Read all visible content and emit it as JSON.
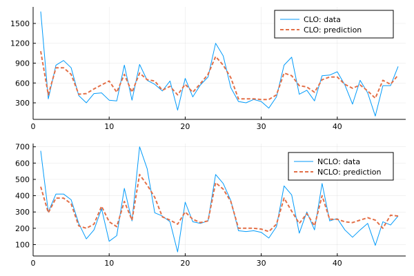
{
  "chart_data": [
    {
      "type": "line",
      "title": "",
      "xlabel": "",
      "ylabel": "",
      "xlim": [
        0,
        49
      ],
      "ylim": [
        50,
        1750
      ],
      "xticks": [
        0,
        10,
        20,
        30,
        40
      ],
      "yticks": [
        300,
        600,
        900,
        1200,
        1500
      ],
      "grid": true,
      "legend_position": "top-right",
      "x": [
        1,
        2,
        3,
        4,
        5,
        6,
        7,
        8,
        9,
        10,
        11,
        12,
        13,
        14,
        15,
        16,
        17,
        18,
        19,
        20,
        21,
        22,
        23,
        24,
        25,
        26,
        27,
        28,
        29,
        30,
        31,
        32,
        33,
        34,
        35,
        36,
        37,
        38,
        39,
        40,
        41,
        42,
        43,
        44,
        45,
        46,
        47,
        48
      ],
      "series": [
        {
          "name": "CLO: data",
          "style": "solid",
          "color": "#009AFA",
          "values": [
            1680,
            360,
            870,
            940,
            830,
            410,
            300,
            440,
            450,
            340,
            330,
            870,
            340,
            880,
            640,
            580,
            480,
            630,
            190,
            670,
            390,
            570,
            690,
            1200,
            1010,
            530,
            320,
            300,
            350,
            320,
            220,
            390,
            870,
            990,
            430,
            490,
            330,
            710,
            720,
            770,
            570,
            280,
            640,
            450,
            100,
            560,
            560,
            850
          ]
        },
        {
          "name": "CLO: prediction",
          "style": "dashed",
          "color": "#E36F47",
          "values": [
            1080,
            420,
            830,
            830,
            730,
            430,
            440,
            510,
            570,
            630,
            460,
            730,
            460,
            750,
            650,
            630,
            490,
            550,
            420,
            580,
            460,
            590,
            730,
            1000,
            870,
            680,
            360,
            360,
            360,
            350,
            350,
            420,
            750,
            710,
            560,
            540,
            460,
            650,
            690,
            690,
            580,
            520,
            570,
            480,
            370,
            640,
            580,
            720
          ]
        }
      ]
    },
    {
      "type": "line",
      "title": "",
      "xlabel": "",
      "ylabel": "",
      "xlim": [
        0,
        49
      ],
      "ylim": [
        30,
        720
      ],
      "xticks": [
        0,
        10,
        20,
        30,
        40
      ],
      "yticks": [
        100,
        200,
        300,
        400,
        500,
        600,
        700
      ],
      "grid": true,
      "legend_position": "top-right",
      "x": [
        1,
        2,
        3,
        4,
        5,
        6,
        7,
        8,
        9,
        10,
        11,
        12,
        13,
        14,
        15,
        16,
        17,
        18,
        19,
        20,
        21,
        22,
        23,
        24,
        25,
        26,
        27,
        28,
        29,
        30,
        31,
        32,
        33,
        34,
        35,
        36,
        37,
        38,
        39,
        40,
        41,
        42,
        43,
        44,
        45,
        46,
        47,
        48
      ],
      "series": [
        {
          "name": "NCLO: data",
          "style": "solid",
          "color": "#009AFA",
          "values": [
            675,
            300,
            410,
            410,
            375,
            230,
            135,
            190,
            320,
            120,
            155,
            445,
            245,
            700,
            565,
            295,
            275,
            240,
            55,
            360,
            240,
            230,
            245,
            530,
            475,
            370,
            185,
            180,
            185,
            175,
            140,
            210,
            460,
            405,
            170,
            300,
            190,
            475,
            245,
            260,
            190,
            145,
            190,
            230,
            95,
            240,
            220,
            275
          ]
        },
        {
          "name": "NCLO: prediction",
          "style": "dashed",
          "color": "#E36F47",
          "values": [
            455,
            295,
            385,
            385,
            350,
            215,
            200,
            225,
            335,
            240,
            210,
            365,
            250,
            530,
            465,
            390,
            270,
            250,
            225,
            300,
            255,
            235,
            245,
            480,
            440,
            365,
            200,
            200,
            200,
            195,
            180,
            225,
            385,
            305,
            230,
            290,
            215,
            400,
            255,
            255,
            240,
            235,
            250,
            265,
            250,
            200,
            280,
            275
          ]
        }
      ]
    }
  ]
}
